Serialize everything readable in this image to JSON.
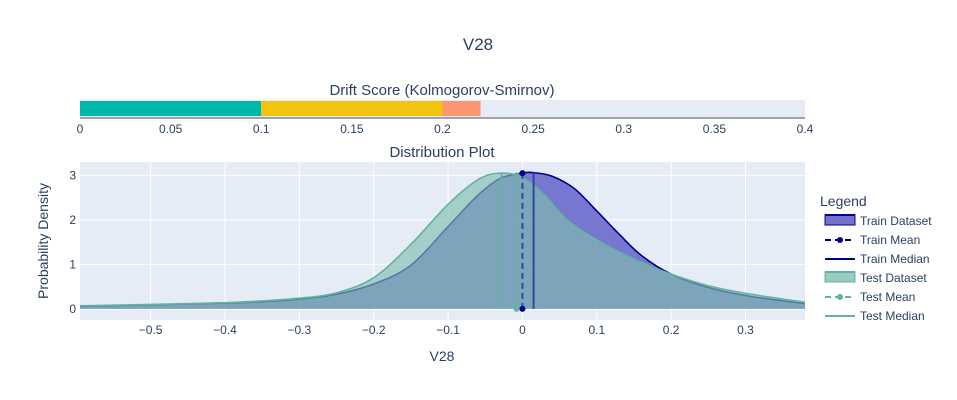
{
  "title": "V28",
  "colors": {
    "plot_bg": "#e5ecf6",
    "text": "#2a3f5f",
    "grid": "#ffffff",
    "train": "#00008b",
    "train_fill": "#5050c0",
    "test": "#66b2a0",
    "test_fill": "#7fbfb0",
    "drift_low": "#00b8a9",
    "drift_mid": "#f2c40f",
    "drift_high": "#fb9672"
  },
  "drift": {
    "title": "Drift Score (Kolmogorov-Smirnov)",
    "score": 0.221,
    "xlim": [
      0,
      0.4
    ],
    "ticks": [
      0,
      0.05,
      0.1,
      0.15,
      0.2,
      0.25,
      0.3,
      0.35,
      0.4
    ],
    "tick_labels": [
      "0",
      "0.05",
      "0.1",
      "0.15",
      "0.2",
      "0.25",
      "0.3",
      "0.35",
      "0.4"
    ],
    "bands": [
      {
        "from": 0,
        "to": 0.1,
        "color": "#00b8a9"
      },
      {
        "from": 0.1,
        "to": 0.2,
        "color": "#f2c40f"
      },
      {
        "from": 0.2,
        "to": 0.221,
        "color": "#fb9672"
      }
    ]
  },
  "chart_data": {
    "type": "area",
    "title": "Distribution Plot",
    "xlabel": "V28",
    "ylabel": "Probability Density",
    "xlim": [
      -0.595,
      0.38
    ],
    "ylim": [
      -0.25,
      3.3
    ],
    "grid": true,
    "legend_position": "right",
    "x_ticks": [
      -0.5,
      -0.4,
      -0.3,
      -0.2,
      -0.1,
      0,
      0.1,
      0.2,
      0.3
    ],
    "x_tick_labels": [
      "−0.5",
      "−0.4",
      "−0.3",
      "−0.2",
      "−0.1",
      "0",
      "0.1",
      "0.2",
      "0.3"
    ],
    "y_ticks": [
      0,
      1,
      2,
      3
    ],
    "y_tick_labels": [
      "0",
      "1",
      "2",
      "3"
    ],
    "series": [
      {
        "name": "Train Dataset",
        "x": [
          -0.595,
          -0.5,
          -0.4,
          -0.35,
          -0.3,
          -0.25,
          -0.2,
          -0.15,
          -0.1,
          -0.06,
          -0.03,
          0,
          0.015,
          0.04,
          0.07,
          0.1,
          0.13,
          0.16,
          0.2,
          0.25,
          0.3,
          0.35,
          0.38
        ],
        "y": [
          0.06,
          0.09,
          0.13,
          0.16,
          0.22,
          0.33,
          0.56,
          0.98,
          1.85,
          2.55,
          2.93,
          3.05,
          3.06,
          2.98,
          2.7,
          2.2,
          1.68,
          1.2,
          0.78,
          0.48,
          0.3,
          0.18,
          0.12
        ]
      },
      {
        "name": "Test Dataset",
        "x": [
          -0.595,
          -0.5,
          -0.4,
          -0.35,
          -0.3,
          -0.25,
          -0.2,
          -0.15,
          -0.1,
          -0.06,
          -0.03,
          0,
          0.03,
          0.06,
          0.1,
          0.15,
          0.2,
          0.25,
          0.3,
          0.35,
          0.38
        ],
        "y": [
          0.07,
          0.1,
          0.14,
          0.18,
          0.24,
          0.36,
          0.7,
          1.45,
          2.35,
          2.9,
          3.05,
          2.95,
          2.55,
          2.0,
          1.55,
          1.12,
          0.78,
          0.52,
          0.35,
          0.22,
          0.15
        ]
      }
    ],
    "markers": {
      "train_mean": {
        "name": "Train Mean",
        "x": 0.0,
        "y": 3.05
      },
      "train_median": {
        "name": "Train Median",
        "x": 0.015,
        "y": 3.06
      },
      "test_mean": {
        "name": "Test Mean",
        "x": -0.008,
        "y": 3.0
      },
      "test_median": {
        "name": "Test Median",
        "x": -0.028,
        "y": 3.05
      }
    }
  },
  "legend": {
    "title": "Legend",
    "items": [
      {
        "label": "Train Dataset",
        "kind": "fill",
        "color": "#00008b",
        "fill": "#5050c0"
      },
      {
        "label": "Train Mean",
        "kind": "dash-dot",
        "color": "#00008b"
      },
      {
        "label": "Train Median",
        "kind": "line",
        "color": "#00008b"
      },
      {
        "label": "Test Dataset",
        "kind": "fill",
        "color": "#66b2a0",
        "fill": "#7fbfb0"
      },
      {
        "label": "Test Mean",
        "kind": "dash-dot",
        "color": "#66b2a0"
      },
      {
        "label": "Test Median",
        "kind": "line",
        "color": "#66b2a0"
      }
    ]
  }
}
